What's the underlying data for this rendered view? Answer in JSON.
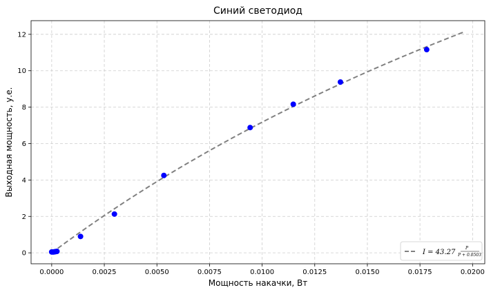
{
  "chart_data": {
    "type": "scatter",
    "title": "Синий светодиод",
    "xlabel": "Мощность накачки, Вт",
    "ylabel": "Выходная мощность, у.е.",
    "xlim": [
      -0.00098,
      0.02058
    ],
    "ylim": [
      -0.6,
      12.75
    ],
    "x_ticks": [
      "0.0000",
      "0.0025",
      "0.0050",
      "0.0075",
      "0.0100",
      "0.0125",
      "0.0150",
      "0.0175",
      "0.0200"
    ],
    "y_ticks": [
      "0",
      "2",
      "4",
      "6",
      "8",
      "10",
      "12"
    ],
    "grid": true,
    "legend_position": "bottom-right",
    "points": {
      "color": "#0000ff",
      "x": [
        0.0,
        5e-05,
        0.0001,
        0.00015,
        0.0002,
        0.00025,
        0.00137,
        0.00298,
        0.00533,
        0.00943,
        0.01148,
        0.01372,
        0.01782
      ],
      "y": [
        0.05,
        0.05,
        0.05,
        0.06,
        0.07,
        0.08,
        0.9,
        2.13,
        4.25,
        6.88,
        8.16,
        9.38,
        11.16
      ]
    },
    "fit": {
      "color": "#808080",
      "style": "dashed",
      "A": 43.27,
      "P0": 0.0503,
      "x_range": [
        0.0,
        0.0196
      ],
      "legend_main": "I = 43.27",
      "legend_num": "P",
      "legend_den": "P + 0.0503"
    }
  }
}
